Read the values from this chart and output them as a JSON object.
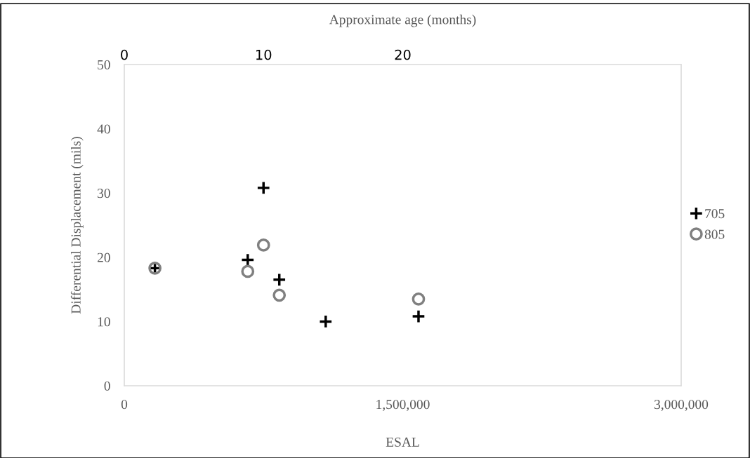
{
  "chart_data": {
    "type": "scatter",
    "xlabel": "ESAL",
    "ylabel": "Differential Displacement (mils)",
    "x2label": "Approximate age (months)",
    "xlim": [
      0,
      3000000
    ],
    "xticks": [
      0,
      {
        "value": 1500000,
        "label": "1,500,000"
      },
      {
        "value": 3000000,
        "label": "3,000,000"
      }
    ],
    "ylim": [
      0,
      50
    ],
    "yticks": [
      0,
      10,
      20,
      30,
      40,
      50
    ],
    "x2lim": [
      0,
      40
    ],
    "x2ticks": [
      0,
      10,
      20
    ],
    "grid": false,
    "legend": "right",
    "series": [
      {
        "name": "705",
        "color": "#000000",
        "marker": "cross",
        "x": [
          165000,
          665000,
          750000,
          835000,
          1085000,
          1585000
        ],
        "values": [
          18.3,
          19.6,
          30.8,
          16.5,
          10.0,
          10.8
        ]
      },
      {
        "name": "805",
        "color": "#808080",
        "marker": "circle",
        "x": [
          165000,
          665000,
          750000,
          835000,
          1585000
        ],
        "values": [
          18.3,
          17.8,
          21.9,
          14.1,
          13.5
        ]
      }
    ]
  }
}
